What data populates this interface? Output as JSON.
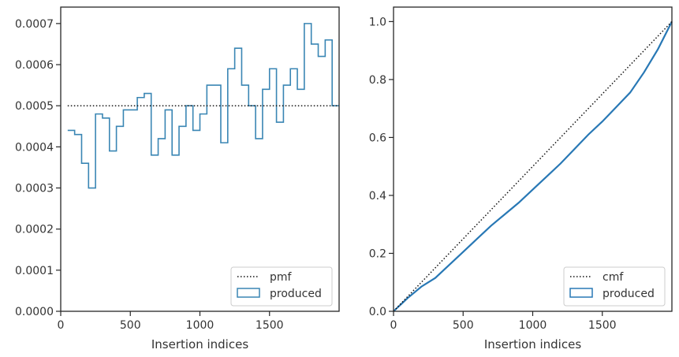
{
  "chart_data": [
    {
      "type": "histogram",
      "xlabel": "Insertion indices",
      "ylabel": "",
      "xlim": [
        0,
        2000
      ],
      "ylim": [
        0,
        0.00074
      ],
      "xticks": [
        0,
        500,
        1000,
        1500
      ],
      "xtick_labels": [
        "0",
        "500",
        "1000",
        "1500"
      ],
      "yticks": [
        0,
        0.0001,
        0.0002,
        0.0003,
        0.0004,
        0.0005,
        0.0006,
        0.0007
      ],
      "ytick_labels": [
        "0.0000",
        "0.0001",
        "0.0002",
        "0.0003",
        "0.0004",
        "0.0005",
        "0.0006",
        "0.0007"
      ],
      "legend_position": "lower right",
      "series": [
        {
          "name": "produced",
          "style": "step",
          "color": "#3a86b4",
          "bin_edges": [
            50,
            100,
            150,
            200,
            250,
            300,
            350,
            400,
            450,
            500,
            550,
            600,
            650,
            700,
            750,
            800,
            850,
            900,
            950,
            1000,
            1050,
            1100,
            1150,
            1200,
            1250,
            1300,
            1350,
            1400,
            1450,
            1500,
            1550,
            1600,
            1650,
            1700,
            1750,
            1800,
            1850,
            1900,
            1950,
            2000
          ],
          "values": [
            0.00044,
            0.00043,
            0.00036,
            0.0003,
            0.00048,
            0.00047,
            0.00039,
            0.00045,
            0.00049,
            0.00049,
            0.00052,
            0.00053,
            0.00038,
            0.00042,
            0.00049,
            0.00038,
            0.00045,
            0.0005,
            0.00044,
            0.00048,
            0.00055,
            0.00055,
            0.00041,
            0.00059,
            0.00064,
            0.00055,
            0.0005,
            0.00042,
            0.00054,
            0.00059,
            0.00046,
            0.00055,
            0.00059,
            0.00054,
            0.0007,
            0.00065,
            0.00062,
            0.00066,
            0.0005
          ]
        },
        {
          "name": "pmf",
          "style": "dotted",
          "color": "#111111",
          "x": [
            50,
            2000
          ],
          "y": [
            0.0005,
            0.0005
          ]
        }
      ]
    },
    {
      "type": "line",
      "xlabel": "Insertion indices",
      "ylabel": "",
      "xlim": [
        0,
        2000
      ],
      "ylim": [
        0,
        1.05
      ],
      "xticks": [
        0,
        500,
        1000,
        1500
      ],
      "xtick_labels": [
        "0",
        "500",
        "1000",
        "1500"
      ],
      "yticks": [
        0,
        0.2,
        0.4,
        0.6,
        0.8,
        1.0
      ],
      "ytick_labels": [
        "0.0",
        "0.2",
        "0.4",
        "0.6",
        "0.8",
        "1.0"
      ],
      "legend_position": "lower right",
      "series": [
        {
          "name": "produced",
          "style": "solid",
          "color": "#2878b5",
          "x": [
            0,
            100,
            200,
            300,
            400,
            500,
            600,
            700,
            800,
            900,
            1000,
            1100,
            1200,
            1300,
            1400,
            1500,
            1600,
            1700,
            1800,
            1900,
            2000
          ],
          "y": [
            0,
            0.045,
            0.085,
            0.115,
            0.16,
            0.205,
            0.25,
            0.295,
            0.335,
            0.375,
            0.42,
            0.465,
            0.51,
            0.56,
            0.61,
            0.655,
            0.705,
            0.755,
            0.825,
            0.905,
            1.0
          ]
        },
        {
          "name": "cmf",
          "style": "dotted",
          "color": "#111111",
          "x": [
            0,
            2000
          ],
          "y": [
            0,
            1.0
          ]
        }
      ]
    }
  ]
}
